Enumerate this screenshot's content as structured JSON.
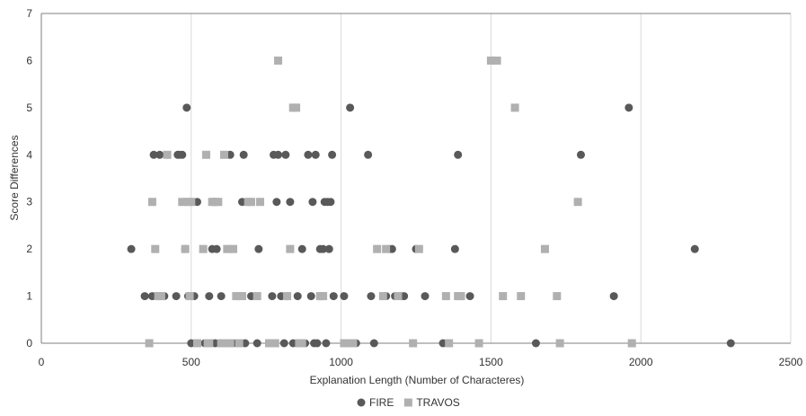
{
  "chart_data": {
    "type": "scatter",
    "title": "",
    "xlabel": "Explanation Length (Number of Characteres)",
    "ylabel": "Score Differences",
    "xlim": [
      0,
      2500
    ],
    "ylim": [
      0,
      7
    ],
    "xticks": [
      0,
      500,
      1000,
      1500,
      2000,
      2500
    ],
    "yticks": [
      0,
      1,
      2,
      3,
      4,
      5,
      6,
      7
    ],
    "grid": "vertical",
    "legend_position": "bottom-center",
    "series": [
      {
        "name": "FIRE",
        "marker": "circle",
        "color": "#595959",
        "points": [
          [
            300,
            2
          ],
          [
            345,
            1
          ],
          [
            370,
            1
          ],
          [
            375,
            4
          ],
          [
            395,
            4
          ],
          [
            410,
            1
          ],
          [
            450,
            1
          ],
          [
            455,
            4
          ],
          [
            460,
            4
          ],
          [
            470,
            4
          ],
          [
            480,
            2
          ],
          [
            485,
            5
          ],
          [
            490,
            1
          ],
          [
            500,
            0
          ],
          [
            510,
            1
          ],
          [
            520,
            3
          ],
          [
            545,
            0
          ],
          [
            560,
            1
          ],
          [
            570,
            2
          ],
          [
            575,
            3
          ],
          [
            580,
            0
          ],
          [
            585,
            2
          ],
          [
            600,
            1
          ],
          [
            620,
            0
          ],
          [
            630,
            4
          ],
          [
            640,
            0
          ],
          [
            655,
            1
          ],
          [
            670,
            3
          ],
          [
            675,
            4
          ],
          [
            680,
            0
          ],
          [
            700,
            1
          ],
          [
            720,
            0
          ],
          [
            725,
            2
          ],
          [
            760,
            0
          ],
          [
            770,
            1
          ],
          [
            775,
            4
          ],
          [
            785,
            3
          ],
          [
            790,
            4
          ],
          [
            800,
            1
          ],
          [
            810,
            0
          ],
          [
            815,
            4
          ],
          [
            820,
            1
          ],
          [
            830,
            3
          ],
          [
            840,
            0
          ],
          [
            855,
            1
          ],
          [
            860,
            0
          ],
          [
            870,
            2
          ],
          [
            880,
            0
          ],
          [
            890,
            4
          ],
          [
            900,
            1
          ],
          [
            905,
            3
          ],
          [
            910,
            0
          ],
          [
            915,
            4
          ],
          [
            920,
            0
          ],
          [
            930,
            2
          ],
          [
            935,
            1
          ],
          [
            940,
            2
          ],
          [
            945,
            3
          ],
          [
            950,
            0
          ],
          [
            955,
            3
          ],
          [
            960,
            2
          ],
          [
            965,
            3
          ],
          [
            970,
            4
          ],
          [
            975,
            1
          ],
          [
            1010,
            1
          ],
          [
            1030,
            5
          ],
          [
            1050,
            0
          ],
          [
            1090,
            4
          ],
          [
            1100,
            1
          ],
          [
            1110,
            0
          ],
          [
            1150,
            1
          ],
          [
            1160,
            2
          ],
          [
            1170,
            2
          ],
          [
            1180,
            1
          ],
          [
            1200,
            1
          ],
          [
            1210,
            1
          ],
          [
            1250,
            2
          ],
          [
            1280,
            1
          ],
          [
            1340,
            0
          ],
          [
            1380,
            2
          ],
          [
            1390,
            4
          ],
          [
            1430,
            1
          ],
          [
            1650,
            0
          ],
          [
            1800,
            4
          ],
          [
            1910,
            1
          ],
          [
            1960,
            5
          ],
          [
            2180,
            2
          ],
          [
            2300,
            0
          ]
        ]
      },
      {
        "name": "TRAVOS",
        "marker": "square",
        "color": "#b0b0b0",
        "points": [
          [
            360,
            0
          ],
          [
            370,
            3
          ],
          [
            380,
            2
          ],
          [
            390,
            1
          ],
          [
            400,
            1
          ],
          [
            420,
            4
          ],
          [
            470,
            3
          ],
          [
            480,
            2
          ],
          [
            490,
            3
          ],
          [
            495,
            1
          ],
          [
            500,
            3
          ],
          [
            520,
            0
          ],
          [
            540,
            2
          ],
          [
            550,
            4
          ],
          [
            555,
            0
          ],
          [
            560,
            0
          ],
          [
            570,
            3
          ],
          [
            580,
            3
          ],
          [
            590,
            3
          ],
          [
            600,
            0
          ],
          [
            610,
            4
          ],
          [
            615,
            0
          ],
          [
            620,
            2
          ],
          [
            630,
            0
          ],
          [
            640,
            2
          ],
          [
            650,
            1
          ],
          [
            660,
            0
          ],
          [
            670,
            1
          ],
          [
            690,
            3
          ],
          [
            700,
            3
          ],
          [
            720,
            1
          ],
          [
            730,
            3
          ],
          [
            760,
            0
          ],
          [
            780,
            0
          ],
          [
            790,
            6
          ],
          [
            820,
            1
          ],
          [
            830,
            2
          ],
          [
            840,
            5
          ],
          [
            850,
            5
          ],
          [
            860,
            0
          ],
          [
            870,
            0
          ],
          [
            930,
            1
          ],
          [
            940,
            1
          ],
          [
            1010,
            0
          ],
          [
            1020,
            0
          ],
          [
            1040,
            0
          ],
          [
            1120,
            2
          ],
          [
            1140,
            1
          ],
          [
            1150,
            2
          ],
          [
            1190,
            1
          ],
          [
            1240,
            0
          ],
          [
            1260,
            2
          ],
          [
            1350,
            1
          ],
          [
            1360,
            0
          ],
          [
            1390,
            1
          ],
          [
            1400,
            1
          ],
          [
            1460,
            0
          ],
          [
            1500,
            6
          ],
          [
            1520,
            6
          ],
          [
            1540,
            1
          ],
          [
            1580,
            5
          ],
          [
            1600,
            1
          ],
          [
            1680,
            2
          ],
          [
            1720,
            1
          ],
          [
            1730,
            0
          ],
          [
            1790,
            3
          ],
          [
            1970,
            0
          ]
        ]
      }
    ]
  }
}
